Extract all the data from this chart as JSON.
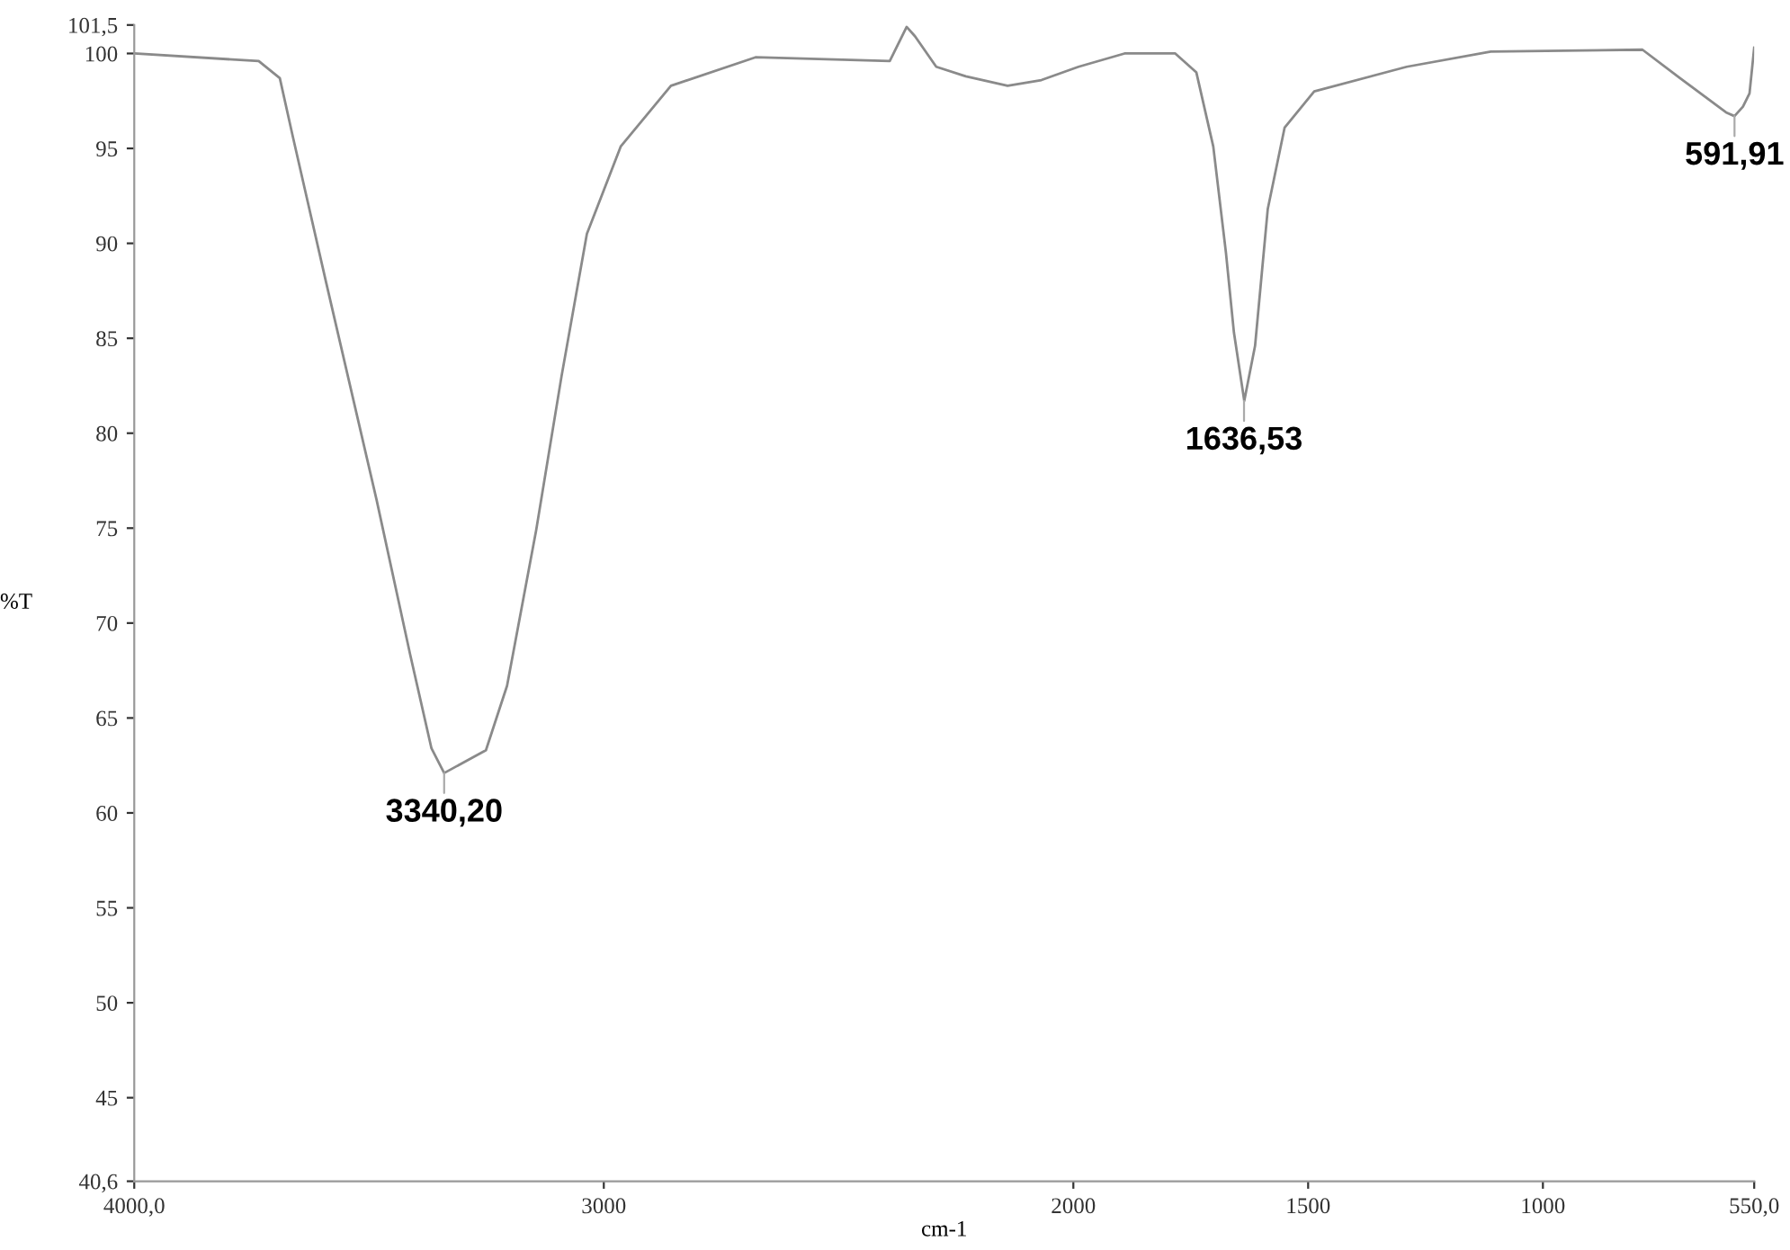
{
  "chart_data": {
    "type": "line",
    "xlabel": "cm-1",
    "ylabel": "%T",
    "xlim": [
      4000,
      550
    ],
    "ylim": [
      40.6,
      101.5
    ],
    "xticks": [
      {
        "value": 4000,
        "label": "4000,0"
      },
      3000,
      2000,
      1500,
      1000,
      {
        "value": 550,
        "label": "550,0"
      }
    ],
    "yticks": [
      {
        "value": 40.6,
        "label": "40,6"
      },
      45,
      50,
      55,
      60,
      65,
      70,
      75,
      80,
      85,
      90,
      95,
      100,
      {
        "value": 101.5,
        "label": "101,5"
      }
    ],
    "grid": false,
    "legend": false,
    "marker": "none",
    "line_style": "solid",
    "series": [
      {
        "color": "#8a8a8a",
        "x": [
          4000,
          3735,
          3690,
          3663,
          3591,
          3484,
          3412,
          3367,
          3340,
          3251,
          3206,
          3144,
          3090,
          3036,
          2964,
          2857,
          2677,
          2391,
          2355,
          2337,
          2292,
          2229,
          2140,
          2068,
          1989,
          1891,
          1783,
          1738,
          1702,
          1675,
          1658,
          1636,
          1613,
          1586,
          1550,
          1487,
          1290,
          1111,
          788,
          708,
          610,
          592,
          574,
          560,
          550
        ],
        "values": [
          100.0,
          99.6,
          98.7,
          95.7,
          87.9,
          76.5,
          68.3,
          63.4,
          62.1,
          63.3,
          66.7,
          74.9,
          83.0,
          90.5,
          95.1,
          98.3,
          99.8,
          99.6,
          101.4,
          100.9,
          99.3,
          98.8,
          98.3,
          98.6,
          99.3,
          100.0,
          100.0,
          99.0,
          95.1,
          89.5,
          85.3,
          81.7,
          84.6,
          91.8,
          96.1,
          98.0,
          99.3,
          100.1,
          100.2,
          98.7,
          96.9,
          96.7,
          97.2,
          97.9,
          100.3
        ]
      }
    ],
    "annotations": [
      {
        "text": "3340,20",
        "x": 3340,
        "y": 62.1
      },
      {
        "text": "1636,53",
        "x": 1636.53,
        "y": 81.7
      },
      {
        "text": "591,91",
        "x": 591.91,
        "y": 96.7
      }
    ]
  }
}
